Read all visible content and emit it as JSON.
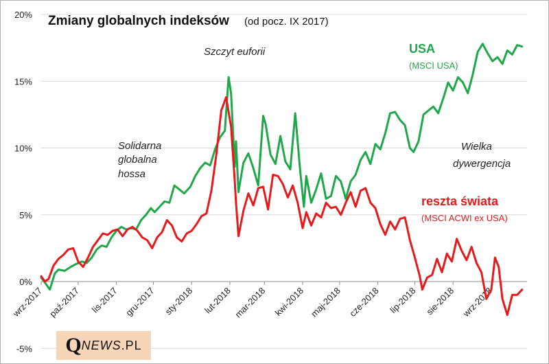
{
  "chart_data": {
    "type": "line",
    "title": "Zmiany globalnych indeksów",
    "subtitle": "(od pocz. IX 2017)",
    "ylim": [
      -5,
      20
    ],
    "y_ticks": [
      "-5%",
      "0%",
      "5%",
      "10%",
      "15%",
      "20%"
    ],
    "x_ticks": [
      "wrz-2017",
      "paź-2017",
      "lis-2017",
      "gru-2017",
      "sty-2018",
      "lut-2018",
      "mar-2018",
      "kwi-2018",
      "maj-2018",
      "cze-2018",
      "lip-2018",
      "sie-2018",
      "wrz-2018"
    ],
    "x_range": [
      "2017-09-01",
      "2018-09-30"
    ],
    "grid": "horizontal",
    "annotations": {
      "euphoria": "Szczyt euforii",
      "hossa": [
        "Solidarna",
        "globalna",
        "hossa"
      ],
      "divergence": [
        "Wielka",
        "dywergencja"
      ]
    },
    "series": [
      {
        "name": "USA",
        "label": "(MSCI USA)",
        "color": "#1ea84a",
        "points": [
          [
            "2017-09-01",
            0.3
          ],
          [
            "2017-09-05",
            -0.2
          ],
          [
            "2017-09-08",
            -0.6
          ],
          [
            "2017-09-12",
            0.6
          ],
          [
            "2017-09-15",
            0.9
          ],
          [
            "2017-09-20",
            0.8
          ],
          [
            "2017-09-25",
            1.1
          ],
          [
            "2017-09-29",
            1.3
          ],
          [
            "2017-10-04",
            1.5
          ],
          [
            "2017-10-08",
            1.4
          ],
          [
            "2017-10-12",
            1.8
          ],
          [
            "2017-10-16",
            2.4
          ],
          [
            "2017-10-20",
            2.7
          ],
          [
            "2017-10-24",
            2.6
          ],
          [
            "2017-10-28",
            3.3
          ],
          [
            "2017-11-01",
            3.8
          ],
          [
            "2017-11-05",
            4.1
          ],
          [
            "2017-11-09",
            3.9
          ],
          [
            "2017-11-13",
            4.0
          ],
          [
            "2017-11-17",
            3.9
          ],
          [
            "2017-11-21",
            4.6
          ],
          [
            "2017-11-25",
            5.0
          ],
          [
            "2017-11-29",
            5.5
          ],
          [
            "2017-12-02",
            5.2
          ],
          [
            "2017-12-06",
            5.6
          ],
          [
            "2017-12-10",
            6.0
          ],
          [
            "2017-12-14",
            5.9
          ],
          [
            "2017-12-18",
            7.2
          ],
          [
            "2017-12-22",
            6.9
          ],
          [
            "2017-12-26",
            6.6
          ],
          [
            "2017-12-31",
            7.1
          ],
          [
            "2018-01-04",
            7.9
          ],
          [
            "2018-01-08",
            8.5
          ],
          [
            "2018-01-12",
            8.9
          ],
          [
            "2018-01-16",
            8.7
          ],
          [
            "2018-01-20",
            9.9
          ],
          [
            "2018-01-24",
            10.8
          ],
          [
            "2018-01-28",
            11.3
          ],
          [
            "2018-01-31",
            15.3
          ],
          [
            "2018-02-02",
            14.1
          ],
          [
            "2018-02-05",
            8.6
          ],
          [
            "2018-02-06",
            10.5
          ],
          [
            "2018-02-08",
            6.7
          ],
          [
            "2018-02-12",
            8.9
          ],
          [
            "2018-02-16",
            9.6
          ],
          [
            "2018-02-20",
            8.5
          ],
          [
            "2018-02-24",
            7.2
          ],
          [
            "2018-02-28",
            12.4
          ],
          [
            "2018-03-02",
            11.8
          ],
          [
            "2018-03-06",
            9.5
          ],
          [
            "2018-03-10",
            8.8
          ],
          [
            "2018-03-14",
            10.9
          ],
          [
            "2018-03-18",
            9.0
          ],
          [
            "2018-03-22",
            8.4
          ],
          [
            "2018-03-26",
            12.6
          ],
          [
            "2018-03-30",
            8.3
          ],
          [
            "2018-04-02",
            5.6
          ],
          [
            "2018-04-04",
            7.9
          ],
          [
            "2018-04-08",
            5.9
          ],
          [
            "2018-04-12",
            6.9
          ],
          [
            "2018-04-16",
            8.1
          ],
          [
            "2018-04-20",
            6.2
          ],
          [
            "2018-04-24",
            6.4
          ],
          [
            "2018-04-28",
            7.9
          ],
          [
            "2018-05-02",
            7.5
          ],
          [
            "2018-05-06",
            6.2
          ],
          [
            "2018-05-10",
            7.5
          ],
          [
            "2018-05-14",
            8.0
          ],
          [
            "2018-05-18",
            9.1
          ],
          [
            "2018-05-22",
            9.7
          ],
          [
            "2018-05-26",
            8.8
          ],
          [
            "2018-05-30",
            10.3
          ],
          [
            "2018-06-03",
            9.9
          ],
          [
            "2018-06-07",
            11.1
          ],
          [
            "2018-06-11",
            12.6
          ],
          [
            "2018-06-15",
            12.7
          ],
          [
            "2018-06-19",
            12.1
          ],
          [
            "2018-06-23",
            11.7
          ],
          [
            "2018-06-27",
            10.0
          ],
          [
            "2018-06-30",
            9.7
          ],
          [
            "2018-07-04",
            10.5
          ],
          [
            "2018-07-08",
            12.5
          ],
          [
            "2018-07-12",
            12.8
          ],
          [
            "2018-07-16",
            13.1
          ],
          [
            "2018-07-20",
            12.6
          ],
          [
            "2018-07-24",
            13.7
          ],
          [
            "2018-07-28",
            14.9
          ],
          [
            "2018-08-01",
            14.3
          ],
          [
            "2018-08-05",
            15.3
          ],
          [
            "2018-08-09",
            14.9
          ],
          [
            "2018-08-13",
            14.1
          ],
          [
            "2018-08-17",
            15.5
          ],
          [
            "2018-08-21",
            17.2
          ],
          [
            "2018-08-25",
            17.8
          ],
          [
            "2018-08-29",
            17.1
          ],
          [
            "2018-09-02",
            16.5
          ],
          [
            "2018-09-06",
            16.8
          ],
          [
            "2018-09-10",
            16.3
          ],
          [
            "2018-09-14",
            17.3
          ],
          [
            "2018-09-18",
            17.0
          ],
          [
            "2018-09-22",
            17.7
          ],
          [
            "2018-09-26",
            17.6
          ]
        ]
      },
      {
        "name": "reszta świata",
        "label": "(MSCI ACWI ex USA)",
        "color": "#e8191b",
        "points": [
          [
            "2017-09-01",
            0.4
          ],
          [
            "2017-09-04",
            0.0
          ],
          [
            "2017-09-07",
            0.2
          ],
          [
            "2017-09-11",
            1.2
          ],
          [
            "2017-09-15",
            1.7
          ],
          [
            "2017-09-19",
            2.0
          ],
          [
            "2017-09-23",
            2.4
          ],
          [
            "2017-09-27",
            2.5
          ],
          [
            "2017-10-01",
            1.5
          ],
          [
            "2017-10-05",
            1.1
          ],
          [
            "2017-10-09",
            1.8
          ],
          [
            "2017-10-13",
            2.6
          ],
          [
            "2017-10-17",
            3.1
          ],
          [
            "2017-10-21",
            3.6
          ],
          [
            "2017-10-25",
            3.5
          ],
          [
            "2017-10-29",
            3.8
          ],
          [
            "2017-11-02",
            3.9
          ],
          [
            "2017-11-06",
            3.4
          ],
          [
            "2017-11-10",
            3.9
          ],
          [
            "2017-11-14",
            4.1
          ],
          [
            "2017-11-18",
            3.8
          ],
          [
            "2017-11-22",
            3.3
          ],
          [
            "2017-11-26",
            3.1
          ],
          [
            "2017-11-30",
            2.5
          ],
          [
            "2017-12-04",
            3.3
          ],
          [
            "2017-12-08",
            3.7
          ],
          [
            "2017-12-12",
            4.6
          ],
          [
            "2017-12-16",
            4.2
          ],
          [
            "2017-12-20",
            3.3
          ],
          [
            "2017-12-24",
            3.0
          ],
          [
            "2017-12-28",
            3.6
          ],
          [
            "2018-01-01",
            3.8
          ],
          [
            "2018-01-05",
            4.3
          ],
          [
            "2018-01-09",
            4.9
          ],
          [
            "2018-01-13",
            5.1
          ],
          [
            "2018-01-17",
            6.8
          ],
          [
            "2018-01-21",
            9.5
          ],
          [
            "2018-01-25",
            12.8
          ],
          [
            "2018-01-29",
            13.8
          ],
          [
            "2018-02-02",
            11.6
          ],
          [
            "2018-02-05",
            7.5
          ],
          [
            "2018-02-06",
            5.9
          ],
          [
            "2018-02-08",
            3.4
          ],
          [
            "2018-02-12",
            5.3
          ],
          [
            "2018-02-16",
            6.6
          ],
          [
            "2018-02-20",
            5.7
          ],
          [
            "2018-02-24",
            7.0
          ],
          [
            "2018-02-28",
            7.1
          ],
          [
            "2018-03-04",
            5.4
          ],
          [
            "2018-03-08",
            8.0
          ],
          [
            "2018-03-12",
            7.9
          ],
          [
            "2018-03-16",
            7.3
          ],
          [
            "2018-03-20",
            6.3
          ],
          [
            "2018-03-24",
            7.2
          ],
          [
            "2018-03-28",
            5.9
          ],
          [
            "2018-04-01",
            4.0
          ],
          [
            "2018-04-04",
            5.2
          ],
          [
            "2018-04-08",
            4.2
          ],
          [
            "2018-04-12",
            5.1
          ],
          [
            "2018-04-16",
            4.8
          ],
          [
            "2018-04-20",
            5.9
          ],
          [
            "2018-04-24",
            5.5
          ],
          [
            "2018-04-28",
            5.6
          ],
          [
            "2018-05-02",
            5.0
          ],
          [
            "2018-05-06",
            5.9
          ],
          [
            "2018-05-10",
            6.7
          ],
          [
            "2018-05-14",
            5.6
          ],
          [
            "2018-05-18",
            6.8
          ],
          [
            "2018-05-22",
            7.0
          ],
          [
            "2018-05-26",
            5.9
          ],
          [
            "2018-05-30",
            5.5
          ],
          [
            "2018-06-03",
            4.3
          ],
          [
            "2018-06-07",
            3.5
          ],
          [
            "2018-06-11",
            4.5
          ],
          [
            "2018-06-15",
            3.9
          ],
          [
            "2018-06-19",
            4.7
          ],
          [
            "2018-06-23",
            4.8
          ],
          [
            "2018-06-27",
            3.1
          ],
          [
            "2018-07-01",
            1.8
          ],
          [
            "2018-07-05",
            0.4
          ],
          [
            "2018-07-07",
            -0.6
          ],
          [
            "2018-07-11",
            0.3
          ],
          [
            "2018-07-15",
            0.5
          ],
          [
            "2018-07-19",
            1.7
          ],
          [
            "2018-07-23",
            0.7
          ],
          [
            "2018-07-27",
            2.1
          ],
          [
            "2018-07-31",
            1.5
          ],
          [
            "2018-08-04",
            3.2
          ],
          [
            "2018-08-08",
            2.3
          ],
          [
            "2018-08-12",
            1.6
          ],
          [
            "2018-08-16",
            2.6
          ],
          [
            "2018-08-20",
            1.4
          ],
          [
            "2018-08-24",
            0.7
          ],
          [
            "2018-08-28",
            -1.3
          ],
          [
            "2018-09-01",
            -0.6
          ],
          [
            "2018-09-04",
            1.8
          ],
          [
            "2018-09-07",
            1.1
          ],
          [
            "2018-09-10",
            -1.3
          ],
          [
            "2018-09-14",
            -2.5
          ],
          [
            "2018-09-18",
            -1.0
          ],
          [
            "2018-09-22",
            -1.0
          ],
          [
            "2018-09-26",
            -0.6
          ]
        ]
      }
    ]
  },
  "logo": {
    "q": "Q",
    "news": "NEWS",
    "pl": ".PL"
  }
}
